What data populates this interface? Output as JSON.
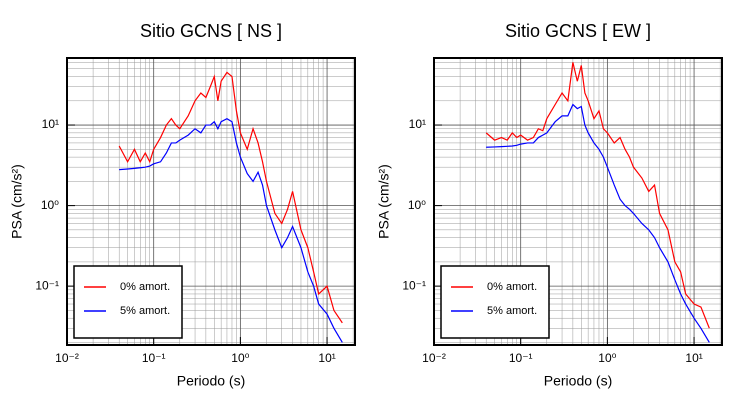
{
  "chart_data": [
    {
      "type": "line",
      "title": "Sitio GCNS [ NS ]",
      "xlabel": "Periodo (s)",
      "ylabel": "PSA (cm/s²)",
      "xscale": "log",
      "yscale": "log",
      "grid": true,
      "legend": "lower left",
      "xlim": [
        0.01,
        21
      ],
      "ylim": [
        0.0186,
        68
      ],
      "xticks": [
        {
          "value": 0.01,
          "label": "10⁻²"
        },
        {
          "value": 0.1,
          "label": "10⁻¹"
        },
        {
          "value": 1,
          "label": "10⁰"
        },
        {
          "value": 10,
          "label": "10¹"
        }
      ],
      "yticks": [
        {
          "value": 0.1,
          "label": "10⁻¹"
        },
        {
          "value": 1,
          "label": "10⁰"
        },
        {
          "value": 10,
          "label": "10¹"
        }
      ],
      "x": [
        0.04,
        0.05,
        0.06,
        0.07,
        0.08,
        0.09,
        0.1,
        0.12,
        0.14,
        0.16,
        0.18,
        0.2,
        0.25,
        0.3,
        0.35,
        0.4,
        0.45,
        0.5,
        0.55,
        0.6,
        0.7,
        0.8,
        0.9,
        1.0,
        1.2,
        1.4,
        1.6,
        1.8,
        2.0,
        2.5,
        3,
        3.5,
        4,
        5,
        6,
        7,
        8,
        10,
        12,
        15
      ],
      "series": [
        {
          "name": "0% amort.",
          "color": "#ff0000",
          "values": [
            5.5,
            3.5,
            5,
            3.5,
            4.5,
            3.5,
            5,
            7,
            10,
            12,
            10,
            9,
            13,
            20,
            25,
            22,
            30,
            40,
            20,
            35,
            45,
            40,
            15,
            8,
            5,
            9,
            6,
            3.5,
            2.0,
            0.8,
            0.6,
            0.9,
            1.5,
            0.5,
            0.3,
            0.15,
            0.08,
            0.1,
            0.05,
            0.035
          ]
        },
        {
          "name": "5% amort.",
          "color": "#0000ff",
          "values": [
            2.8,
            2.85,
            2.9,
            2.95,
            3.0,
            3.1,
            3.3,
            3.5,
            4.5,
            6,
            6,
            6.5,
            7.5,
            9,
            8,
            10,
            10,
            11,
            9,
            11,
            12,
            11,
            6,
            4,
            2.5,
            2.0,
            2.6,
            1.8,
            1.0,
            0.5,
            0.3,
            0.4,
            0.55,
            0.3,
            0.15,
            0.1,
            0.06,
            0.045,
            0.03,
            0.02
          ]
        }
      ]
    },
    {
      "type": "line",
      "title": "Sitio GCNS [ EW ]",
      "xlabel": "Periodo (s)",
      "ylabel": "PSA (cm/s²)",
      "xscale": "log",
      "yscale": "log",
      "grid": true,
      "legend": "lower left",
      "xlim": [
        0.01,
        21
      ],
      "ylim": [
        0.0186,
        68
      ],
      "xticks": [
        {
          "value": 0.01,
          "label": "10⁻²"
        },
        {
          "value": 0.1,
          "label": "10⁻¹"
        },
        {
          "value": 1,
          "label": "10⁰"
        },
        {
          "value": 10,
          "label": "10¹"
        }
      ],
      "yticks": [
        {
          "value": 0.1,
          "label": "10⁻¹"
        },
        {
          "value": 1,
          "label": "10⁰"
        },
        {
          "value": 10,
          "label": "10¹"
        }
      ],
      "x": [
        0.04,
        0.05,
        0.06,
        0.07,
        0.08,
        0.09,
        0.1,
        0.12,
        0.14,
        0.16,
        0.18,
        0.2,
        0.25,
        0.3,
        0.35,
        0.4,
        0.45,
        0.5,
        0.55,
        0.6,
        0.7,
        0.8,
        0.9,
        1.0,
        1.2,
        1.4,
        1.6,
        1.8,
        2.0,
        2.5,
        3,
        3.5,
        4,
        5,
        6,
        7,
        8,
        10,
        12,
        15
      ],
      "series": [
        {
          "name": "0% amort.",
          "color": "#ff0000",
          "values": [
            8,
            6.5,
            7,
            6.5,
            8,
            7,
            7.5,
            6.5,
            7,
            9,
            8.5,
            12,
            18,
            25,
            20,
            60,
            35,
            55,
            25,
            20,
            12,
            15,
            9,
            8,
            6,
            7,
            5,
            4,
            3,
            2.2,
            1.5,
            1.8,
            0.8,
            0.5,
            0.2,
            0.15,
            0.08,
            0.06,
            0.055,
            0.03
          ]
        },
        {
          "name": "5% amort.",
          "color": "#0000ff",
          "values": [
            5.3,
            5.35,
            5.4,
            5.45,
            5.5,
            5.6,
            5.8,
            6,
            6,
            7,
            7.5,
            8,
            11,
            13,
            13,
            18,
            16,
            17,
            10,
            8,
            6,
            5,
            4,
            3,
            1.8,
            1.2,
            1.0,
            0.9,
            0.8,
            0.6,
            0.5,
            0.4,
            0.3,
            0.2,
            0.12,
            0.08,
            0.06,
            0.04,
            0.03,
            0.02
          ]
        }
      ]
    }
  ]
}
